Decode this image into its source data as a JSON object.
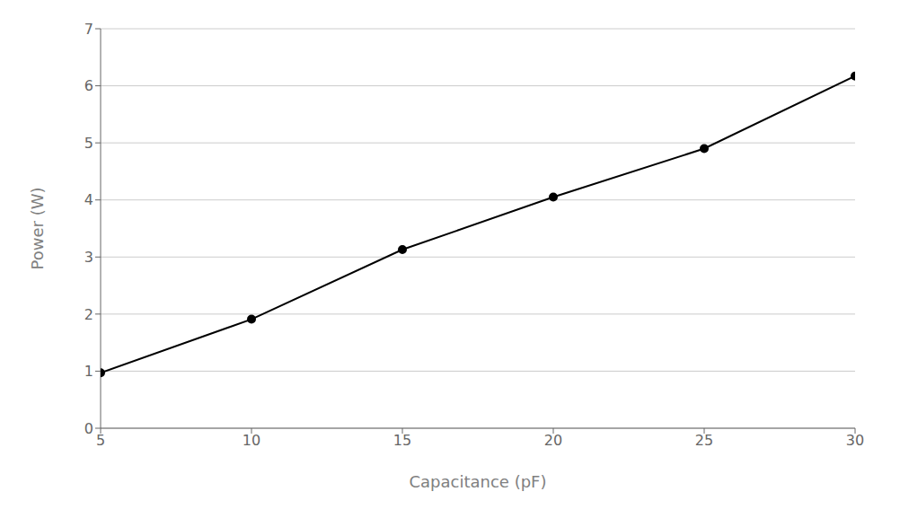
{
  "chart_data": {
    "type": "line",
    "x": [
      5,
      10,
      15,
      20,
      25,
      30
    ],
    "values": [
      0.97,
      1.91,
      3.13,
      4.05,
      4.9,
      6.17
    ],
    "xlabel": "Capacitance (pF)",
    "ylabel": "Power (W)",
    "xlim": [
      5,
      30
    ],
    "ylim": [
      0,
      7
    ],
    "xticks": [
      5,
      10,
      15,
      20,
      25,
      30
    ],
    "yticks": [
      0,
      1,
      2,
      3,
      4,
      5,
      6,
      7
    ],
    "color": "#000000",
    "marker": "circle",
    "grid": true
  }
}
